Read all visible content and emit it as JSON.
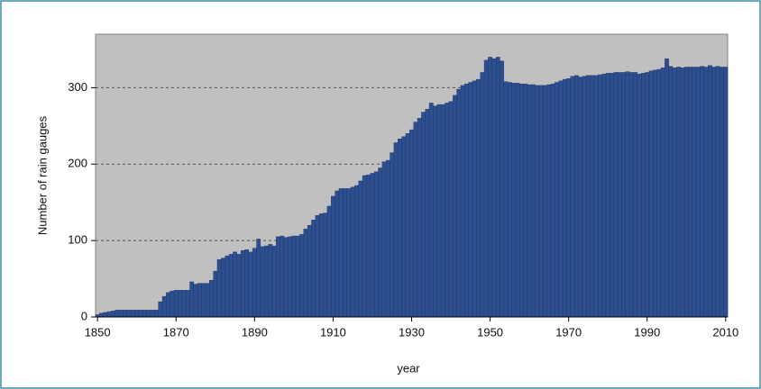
{
  "chart_data": {
    "type": "bar",
    "x_label": "year",
    "y_label": "Number of rain gauges",
    "color": "#2d4f8f",
    "background": "#c0c0c0",
    "grid": true,
    "xlim": [
      1849.5,
      2010.5
    ],
    "ylim": [
      0,
      370
    ],
    "xticks": [
      1850,
      1870,
      1890,
      1910,
      1930,
      1950,
      1970,
      1990,
      2010
    ],
    "yticks": [
      0,
      100,
      200,
      300
    ],
    "x": [
      1850,
      1851,
      1852,
      1853,
      1854,
      1855,
      1856,
      1857,
      1858,
      1859,
      1860,
      1861,
      1862,
      1863,
      1864,
      1865,
      1866,
      1867,
      1868,
      1869,
      1870,
      1871,
      1872,
      1873,
      1874,
      1875,
      1876,
      1877,
      1878,
      1879,
      1880,
      1881,
      1882,
      1883,
      1884,
      1885,
      1886,
      1887,
      1888,
      1889,
      1890,
      1891,
      1892,
      1893,
      1894,
      1895,
      1896,
      1897,
      1898,
      1899,
      1900,
      1901,
      1902,
      1903,
      1904,
      1905,
      1906,
      1907,
      1908,
      1909,
      1910,
      1911,
      1912,
      1913,
      1914,
      1915,
      1916,
      1917,
      1918,
      1919,
      1920,
      1921,
      1922,
      1923,
      1924,
      1925,
      1926,
      1927,
      1928,
      1929,
      1930,
      1931,
      1932,
      1933,
      1934,
      1935,
      1936,
      1937,
      1938,
      1939,
      1940,
      1941,
      1942,
      1943,
      1944,
      1945,
      1946,
      1947,
      1948,
      1949,
      1950,
      1951,
      1952,
      1953,
      1954,
      1955,
      1956,
      1957,
      1958,
      1959,
      1960,
      1961,
      1962,
      1963,
      1964,
      1965,
      1966,
      1967,
      1968,
      1969,
      1970,
      1971,
      1972,
      1973,
      1974,
      1975,
      1976,
      1977,
      1978,
      1979,
      1980,
      1981,
      1982,
      1983,
      1984,
      1985,
      1986,
      1987,
      1988,
      1989,
      1990,
      1991,
      1992,
      1993,
      1994,
      1995,
      1996,
      1997,
      1998,
      1999,
      2000,
      2001,
      2002,
      2003,
      2004,
      2005,
      2006,
      2007,
      2008,
      2009,
      2010
    ],
    "values": [
      3,
      5,
      6,
      7,
      8,
      9,
      9,
      9,
      9,
      9,
      9,
      9,
      9,
      9,
      9,
      9,
      20,
      27,
      32,
      34,
      35,
      35,
      35,
      35,
      46,
      43,
      44,
      44,
      44,
      48,
      60,
      75,
      77,
      80,
      82,
      85,
      82,
      87,
      88,
      85,
      90,
      102,
      92,
      93,
      95,
      93,
      105,
      106,
      104,
      105,
      106,
      106,
      108,
      115,
      120,
      127,
      133,
      135,
      136,
      145,
      158,
      165,
      168,
      168,
      168,
      170,
      172,
      178,
      185,
      186,
      188,
      190,
      195,
      203,
      205,
      215,
      228,
      233,
      236,
      240,
      245,
      255,
      260,
      268,
      272,
      280,
      276,
      278,
      278,
      280,
      282,
      290,
      298,
      303,
      305,
      307,
      309,
      311,
      320,
      336,
      340,
      338,
      340,
      335,
      308,
      307,
      306,
      306,
      305,
      305,
      304,
      304,
      303,
      303,
      303,
      304,
      305,
      307,
      309,
      311,
      312,
      315,
      316,
      314,
      315,
      316,
      316,
      316,
      317,
      318,
      319,
      319,
      320,
      320,
      320,
      321,
      320,
      320,
      318,
      319,
      320,
      322,
      323,
      324,
      326,
      338,
      328,
      326,
      327,
      326,
      327,
      327,
      327,
      327,
      328,
      327,
      329,
      327,
      328,
      327,
      327
    ]
  }
}
